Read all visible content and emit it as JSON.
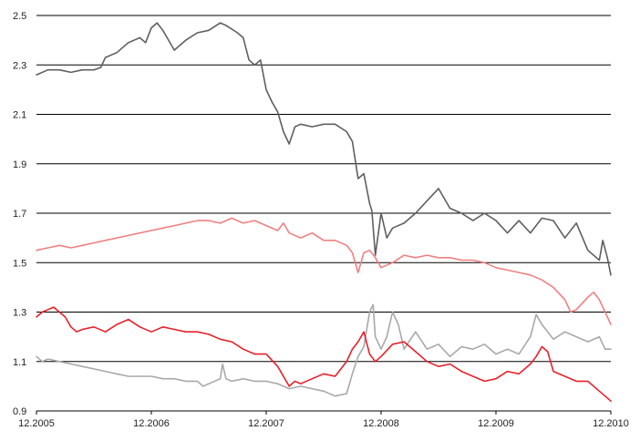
{
  "chart_data": {
    "type": "line",
    "title": "",
    "xlabel": "",
    "ylabel": "",
    "xlim": [
      0,
      5
    ],
    "ylim": [
      0.9,
      2.5
    ],
    "grid": "horizontal",
    "legend": "none",
    "x_ticks": [
      {
        "x": 0,
        "label": "12.2005"
      },
      {
        "x": 1,
        "label": "12.2006"
      },
      {
        "x": 2,
        "label": "12.2007"
      },
      {
        "x": 3,
        "label": "12.2008"
      },
      {
        "x": 4,
        "label": "12.2009"
      },
      {
        "x": 5,
        "label": "12.2010"
      }
    ],
    "y_ticks": [
      {
        "y": 0.9,
        "label": "0.9"
      },
      {
        "y": 1.1,
        "label": "1.1"
      },
      {
        "y": 1.3,
        "label": "1.3"
      },
      {
        "y": 1.5,
        "label": "1.5"
      },
      {
        "y": 1.7,
        "label": "1.7"
      },
      {
        "y": 1.9,
        "label": "1.9"
      },
      {
        "y": 2.1,
        "label": "2.1"
      },
      {
        "y": 2.3,
        "label": "2.3"
      },
      {
        "y": 2.5,
        "label": "2.5"
      }
    ],
    "series": [
      {
        "color": "#5f5f5f",
        "points": [
          [
            0,
            2.26
          ],
          [
            0.1,
            2.28
          ],
          [
            0.2,
            2.28
          ],
          [
            0.3,
            2.27
          ],
          [
            0.4,
            2.28
          ],
          [
            0.5,
            2.28
          ],
          [
            0.56,
            2.29
          ],
          [
            0.6,
            2.33
          ],
          [
            0.7,
            2.35
          ],
          [
            0.8,
            2.39
          ],
          [
            0.9,
            2.41
          ],
          [
            0.95,
            2.39
          ],
          [
            1.0,
            2.45
          ],
          [
            1.05,
            2.47
          ],
          [
            1.1,
            2.44
          ],
          [
            1.15,
            2.4
          ],
          [
            1.2,
            2.36
          ],
          [
            1.3,
            2.4
          ],
          [
            1.4,
            2.43
          ],
          [
            1.5,
            2.44
          ],
          [
            1.6,
            2.47
          ],
          [
            1.65,
            2.46
          ],
          [
            1.75,
            2.43
          ],
          [
            1.8,
            2.41
          ],
          [
            1.85,
            2.32
          ],
          [
            1.9,
            2.3
          ],
          [
            1.95,
            2.32
          ],
          [
            2.0,
            2.2
          ],
          [
            2.05,
            2.15
          ],
          [
            2.1,
            2.11
          ],
          [
            2.15,
            2.03
          ],
          [
            2.2,
            1.98
          ],
          [
            2.25,
            2.05
          ],
          [
            2.3,
            2.06
          ],
          [
            2.4,
            2.05
          ],
          [
            2.5,
            2.06
          ],
          [
            2.6,
            2.06
          ],
          [
            2.7,
            2.03
          ],
          [
            2.75,
            1.99
          ],
          [
            2.8,
            1.84
          ],
          [
            2.85,
            1.86
          ],
          [
            2.9,
            1.74
          ],
          [
            2.92,
            1.71
          ],
          [
            2.95,
            1.53
          ],
          [
            3.0,
            1.7
          ],
          [
            3.05,
            1.6
          ],
          [
            3.1,
            1.64
          ],
          [
            3.2,
            1.66
          ],
          [
            3.3,
            1.7
          ],
          [
            3.4,
            1.75
          ],
          [
            3.5,
            1.8
          ],
          [
            3.6,
            1.72
          ],
          [
            3.7,
            1.7
          ],
          [
            3.8,
            1.67
          ],
          [
            3.9,
            1.7
          ],
          [
            4.0,
            1.67
          ],
          [
            4.1,
            1.62
          ],
          [
            4.2,
            1.67
          ],
          [
            4.3,
            1.62
          ],
          [
            4.4,
            1.68
          ],
          [
            4.5,
            1.67
          ],
          [
            4.6,
            1.6
          ],
          [
            4.7,
            1.66
          ],
          [
            4.8,
            1.55
          ],
          [
            4.9,
            1.51
          ],
          [
            4.93,
            1.59
          ],
          [
            4.97,
            1.52
          ],
          [
            5.0,
            1.45
          ]
        ]
      },
      {
        "color": "#f08080",
        "points": [
          [
            0,
            1.55
          ],
          [
            0.1,
            1.56
          ],
          [
            0.2,
            1.57
          ],
          [
            0.3,
            1.56
          ],
          [
            0.4,
            1.57
          ],
          [
            0.5,
            1.58
          ],
          [
            0.6,
            1.59
          ],
          [
            0.7,
            1.6
          ],
          [
            0.8,
            1.61
          ],
          [
            0.9,
            1.62
          ],
          [
            1.0,
            1.63
          ],
          [
            1.1,
            1.64
          ],
          [
            1.2,
            1.65
          ],
          [
            1.3,
            1.66
          ],
          [
            1.4,
            1.67
          ],
          [
            1.5,
            1.67
          ],
          [
            1.6,
            1.66
          ],
          [
            1.7,
            1.68
          ],
          [
            1.8,
            1.66
          ],
          [
            1.9,
            1.67
          ],
          [
            2.0,
            1.65
          ],
          [
            2.1,
            1.63
          ],
          [
            2.15,
            1.66
          ],
          [
            2.2,
            1.62
          ],
          [
            2.3,
            1.6
          ],
          [
            2.4,
            1.62
          ],
          [
            2.5,
            1.59
          ],
          [
            2.6,
            1.59
          ],
          [
            2.7,
            1.57
          ],
          [
            2.75,
            1.54
          ],
          [
            2.8,
            1.46
          ],
          [
            2.85,
            1.54
          ],
          [
            2.9,
            1.55
          ],
          [
            2.95,
            1.52
          ],
          [
            3.0,
            1.48
          ],
          [
            3.1,
            1.5
          ],
          [
            3.2,
            1.53
          ],
          [
            3.3,
            1.52
          ],
          [
            3.4,
            1.53
          ],
          [
            3.5,
            1.52
          ],
          [
            3.6,
            1.52
          ],
          [
            3.7,
            1.51
          ],
          [
            3.8,
            1.51
          ],
          [
            3.9,
            1.5
          ],
          [
            4.0,
            1.48
          ],
          [
            4.1,
            1.47
          ],
          [
            4.2,
            1.46
          ],
          [
            4.3,
            1.45
          ],
          [
            4.4,
            1.43
          ],
          [
            4.5,
            1.4
          ],
          [
            4.6,
            1.35
          ],
          [
            4.65,
            1.3
          ],
          [
            4.7,
            1.31
          ],
          [
            4.8,
            1.36
          ],
          [
            4.85,
            1.38
          ],
          [
            4.9,
            1.35
          ],
          [
            4.95,
            1.3
          ],
          [
            5.0,
            1.25
          ]
        ]
      },
      {
        "color": "#a8a8a8",
        "points": [
          [
            0,
            1.12
          ],
          [
            0.05,
            1.1
          ],
          [
            0.1,
            1.11
          ],
          [
            0.2,
            1.1
          ],
          [
            0.3,
            1.09
          ],
          [
            0.4,
            1.08
          ],
          [
            0.5,
            1.07
          ],
          [
            0.6,
            1.06
          ],
          [
            0.7,
            1.05
          ],
          [
            0.8,
            1.04
          ],
          [
            0.9,
            1.04
          ],
          [
            1.0,
            1.04
          ],
          [
            1.1,
            1.03
          ],
          [
            1.2,
            1.03
          ],
          [
            1.3,
            1.02
          ],
          [
            1.4,
            1.02
          ],
          [
            1.45,
            1.0
          ],
          [
            1.5,
            1.01
          ],
          [
            1.6,
            1.03
          ],
          [
            1.62,
            1.09
          ],
          [
            1.65,
            1.03
          ],
          [
            1.7,
            1.02
          ],
          [
            1.8,
            1.03
          ],
          [
            1.9,
            1.02
          ],
          [
            2.0,
            1.02
          ],
          [
            2.1,
            1.01
          ],
          [
            2.2,
            0.99
          ],
          [
            2.3,
            1.0
          ],
          [
            2.4,
            0.99
          ],
          [
            2.5,
            0.98
          ],
          [
            2.6,
            0.96
          ],
          [
            2.7,
            0.97
          ],
          [
            2.75,
            1.05
          ],
          [
            2.8,
            1.12
          ],
          [
            2.85,
            1.16
          ],
          [
            2.9,
            1.3
          ],
          [
            2.93,
            1.33
          ],
          [
            2.95,
            1.2
          ],
          [
            3.0,
            1.15
          ],
          [
            3.05,
            1.2
          ],
          [
            3.1,
            1.3
          ],
          [
            3.15,
            1.25
          ],
          [
            3.2,
            1.15
          ],
          [
            3.3,
            1.22
          ],
          [
            3.4,
            1.15
          ],
          [
            3.5,
            1.17
          ],
          [
            3.6,
            1.12
          ],
          [
            3.7,
            1.16
          ],
          [
            3.8,
            1.15
          ],
          [
            3.9,
            1.17
          ],
          [
            4.0,
            1.13
          ],
          [
            4.1,
            1.15
          ],
          [
            4.2,
            1.13
          ],
          [
            4.3,
            1.2
          ],
          [
            4.35,
            1.29
          ],
          [
            4.4,
            1.25
          ],
          [
            4.5,
            1.19
          ],
          [
            4.6,
            1.22
          ],
          [
            4.7,
            1.2
          ],
          [
            4.8,
            1.18
          ],
          [
            4.9,
            1.2
          ],
          [
            4.95,
            1.15
          ],
          [
            5.0,
            1.15
          ]
        ]
      },
      {
        "color": "#e8202a",
        "points": [
          [
            0,
            1.28
          ],
          [
            0.05,
            1.3
          ],
          [
            0.1,
            1.31
          ],
          [
            0.15,
            1.32
          ],
          [
            0.2,
            1.3
          ],
          [
            0.25,
            1.28
          ],
          [
            0.3,
            1.24
          ],
          [
            0.35,
            1.22
          ],
          [
            0.4,
            1.23
          ],
          [
            0.5,
            1.24
          ],
          [
            0.6,
            1.22
          ],
          [
            0.7,
            1.25
          ],
          [
            0.8,
            1.27
          ],
          [
            0.9,
            1.24
          ],
          [
            1.0,
            1.22
          ],
          [
            1.1,
            1.24
          ],
          [
            1.2,
            1.23
          ],
          [
            1.3,
            1.22
          ],
          [
            1.4,
            1.22
          ],
          [
            1.5,
            1.21
          ],
          [
            1.6,
            1.19
          ],
          [
            1.7,
            1.18
          ],
          [
            1.8,
            1.15
          ],
          [
            1.9,
            1.13
          ],
          [
            2.0,
            1.13
          ],
          [
            2.1,
            1.08
          ],
          [
            2.2,
            1.0
          ],
          [
            2.25,
            1.02
          ],
          [
            2.3,
            1.01
          ],
          [
            2.4,
            1.03
          ],
          [
            2.5,
            1.05
          ],
          [
            2.6,
            1.04
          ],
          [
            2.7,
            1.1
          ],
          [
            2.75,
            1.15
          ],
          [
            2.8,
            1.18
          ],
          [
            2.85,
            1.22
          ],
          [
            2.9,
            1.13
          ],
          [
            2.95,
            1.1
          ],
          [
            3.0,
            1.12
          ],
          [
            3.1,
            1.17
          ],
          [
            3.2,
            1.18
          ],
          [
            3.3,
            1.14
          ],
          [
            3.4,
            1.1
          ],
          [
            3.5,
            1.08
          ],
          [
            3.6,
            1.09
          ],
          [
            3.7,
            1.06
          ],
          [
            3.8,
            1.04
          ],
          [
            3.9,
            1.02
          ],
          [
            4.0,
            1.03
          ],
          [
            4.1,
            1.06
          ],
          [
            4.2,
            1.05
          ],
          [
            4.3,
            1.09
          ],
          [
            4.35,
            1.12
          ],
          [
            4.4,
            1.16
          ],
          [
            4.45,
            1.14
          ],
          [
            4.5,
            1.06
          ],
          [
            4.6,
            1.04
          ],
          [
            4.7,
            1.02
          ],
          [
            4.8,
            1.02
          ],
          [
            4.9,
            0.98
          ],
          [
            4.95,
            0.96
          ],
          [
            5.0,
            0.94
          ]
        ]
      }
    ]
  }
}
